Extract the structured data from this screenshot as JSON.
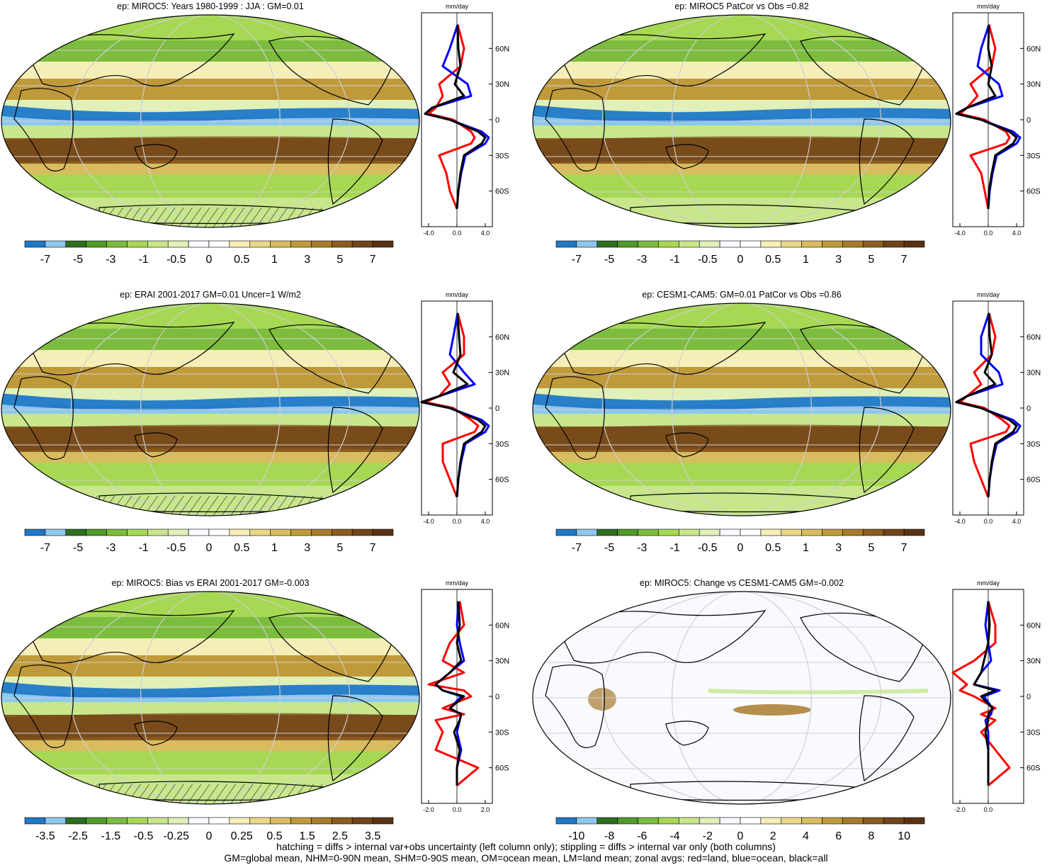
{
  "colors": {
    "palette_left": [
      "#1f78c8",
      "#8cc8f0",
      "#2e6e1e",
      "#4e9a2a",
      "#7cbc3e",
      "#a6d854",
      "#c8e68c",
      "#e0f0b8",
      "#f8fafe",
      "#ffffff",
      "#f5eeb8",
      "#e8d888",
      "#d8bc60",
      "#c09a3a",
      "#a87a2c",
      "#8c5c20",
      "#70441a",
      "#5a3214"
    ],
    "land_outline": "#000000",
    "graticule": "#cfcfcf",
    "line_land": "#ff0000",
    "line_ocean": "#0000ff",
    "line_all": "#000000"
  },
  "panels": [
    {
      "title": "ep: MIROC5: Years 1980-1999 : JJA : GM=0.01",
      "colorbar_labels": [
        "-7",
        "-5",
        "-3",
        "-1",
        "-0.5",
        "0",
        "0.5",
        "1",
        "3",
        "5",
        "7"
      ],
      "zonal_units": "mm/day",
      "zonal_ticks": [
        "-4.0",
        "0.0",
        "4.0"
      ],
      "lat_labels": [
        "60N",
        "30N",
        "0",
        "30S",
        "60S"
      ],
      "background": "mixed",
      "hatching": true
    },
    {
      "title": "ep: MIROC5 PatCor vs Obs =0.82",
      "colorbar_labels": [
        "-7",
        "-5",
        "-3",
        "-1",
        "-0.5",
        "0",
        "0.5",
        "1",
        "3",
        "5",
        "7"
      ],
      "zonal_units": "mm/day",
      "zonal_ticks": [
        "-4.0",
        "0.0",
        "4.0"
      ],
      "lat_labels": [
        "60N",
        "30N",
        "0",
        "30S",
        "60S"
      ],
      "background": "mixed",
      "hatching": false
    },
    {
      "title": "ep: ERAI 2001-2017 GM=0.01 Uncer=1 W/m2",
      "colorbar_labels": [
        "-7",
        "-5",
        "-3",
        "-1",
        "-0.5",
        "0",
        "0.5",
        "1",
        "3",
        "5",
        "7"
      ],
      "zonal_units": "mm/day",
      "zonal_ticks": [
        "-4.0",
        "0.0",
        "4.0"
      ],
      "lat_labels": [
        "60N",
        "30N",
        "0",
        "30S",
        "60S"
      ],
      "background": "mixed",
      "hatching": true
    },
    {
      "title": "ep: CESM1-CAM5: GM=0.01 PatCor vs Obs =0.86",
      "colorbar_labels": [
        "-7",
        "-5",
        "-3",
        "-1",
        "-0.5",
        "0",
        "0.5",
        "1",
        "3",
        "5",
        "7"
      ],
      "zonal_units": "mm/day",
      "zonal_ticks": [
        "-4.0",
        "0.0",
        "4.0"
      ],
      "lat_labels": [
        "60N",
        "30N",
        "0",
        "30S",
        "60S"
      ],
      "background": "mixed",
      "hatching": false
    },
    {
      "title": "ep: MIROC5: Bias vs ERAI 2001-2017 GM=-0.003",
      "colorbar_labels": [
        "-3.5",
        "-2.5",
        "-1.5",
        "-0.5",
        "-0.25",
        "0",
        "0.25",
        "0.5",
        "1.5",
        "2.5",
        "3.5"
      ],
      "zonal_units": "mm/day",
      "zonal_ticks": [
        "-2.0",
        "0.0",
        "2.0"
      ],
      "lat_labels": [
        "60N",
        "30N",
        "0",
        "30S",
        "60S"
      ],
      "background": "mixed",
      "hatching": true
    },
    {
      "title": "ep: MIROC5: Change vs CESM1-CAM5 GM=-0.002",
      "colorbar_labels": [
        "-10",
        "-8",
        "-6",
        "-4",
        "-2",
        "0",
        "2",
        "4",
        "6",
        "8",
        "10"
      ],
      "zonal_units": "mm/day",
      "zonal_ticks": [
        "-2.0",
        "0.0"
      ],
      "lat_labels": [
        "60N",
        "30N",
        "0",
        "30S",
        "60S"
      ],
      "background": "pale",
      "hatching": false
    }
  ],
  "footnote": {
    "line1": "hatching = diffs > internal var+obs uncertainty (left column only); stippling = diffs > internal var only (both columns)",
    "line2": "GM=global mean, NHM=0-90N mean, SHM=0-90S mean, OM=ocean mean, LM=land mean; zonal avgs: red=land, blue=ocean, black=all"
  },
  "chart_data": [
    {
      "type": "heatmap",
      "title": "ep: MIROC5: Years 1980-1999 : JJA : GM=0.01",
      "zonal_lat": [
        80,
        60,
        45,
        30,
        20,
        10,
        5,
        0,
        -10,
        -15,
        -20,
        -30,
        -45,
        -60,
        -75
      ],
      "zonal_all": [
        0.1,
        0.2,
        0.5,
        -0.3,
        1.0,
        -3.5,
        -4.5,
        -1.0,
        3.0,
        4.0,
        3.5,
        1.0,
        0.5,
        0.2,
        0.0
      ],
      "zonal_land": [
        0.1,
        1.0,
        0.5,
        -2.5,
        -2.0,
        -3.0,
        -4.0,
        -0.5,
        2.0,
        2.5,
        2.0,
        -2.5,
        -1.5,
        -1.0,
        0.0
      ],
      "zonal_ocean": [
        0.1,
        -1.0,
        -2.0,
        1.5,
        2.0,
        -3.5,
        -4.5,
        -1.0,
        3.5,
        4.5,
        4.0,
        1.2,
        0.6,
        0.2,
        0.0
      ]
    },
    {
      "type": "heatmap",
      "title": "ep: MIROC5 PatCor vs Obs =0.82",
      "zonal_lat": [
        80,
        60,
        45,
        30,
        20,
        10,
        5,
        0,
        -10,
        -15,
        -20,
        -30,
        -45,
        -60,
        -75
      ],
      "zonal_all": [
        0.1,
        0.0,
        0.5,
        0.0,
        1.0,
        -3.0,
        -4.5,
        -1.0,
        3.0,
        4.0,
        3.5,
        1.0,
        0.5,
        0.1,
        0.0
      ],
      "zonal_land": [
        0.1,
        1.0,
        0.5,
        -2.5,
        -1.5,
        -3.0,
        -4.0,
        -0.5,
        2.5,
        3.0,
        2.5,
        -2.5,
        -1.0,
        -0.5,
        0.0
      ],
      "zonal_ocean": [
        0.1,
        -1.0,
        -1.5,
        1.5,
        2.0,
        -3.0,
        -4.5,
        -1.0,
        3.5,
        4.5,
        4.0,
        1.2,
        0.6,
        0.2,
        0.0
      ]
    },
    {
      "type": "heatmap",
      "title": "ep: ERAI 2001-2017 GM=0.01 Uncer=1 W/m2",
      "zonal_lat": [
        80,
        60,
        45,
        30,
        20,
        10,
        5,
        0,
        -10,
        -15,
        -20,
        -30,
        -45,
        -60,
        -75
      ],
      "zonal_all": [
        0.1,
        0.3,
        0.5,
        -0.5,
        1.5,
        -2.5,
        -5.0,
        -1.0,
        3.0,
        4.0,
        3.5,
        1.0,
        0.5,
        0.2,
        0.0
      ],
      "zonal_land": [
        0.1,
        1.0,
        1.0,
        -2.0,
        -1.0,
        -2.5,
        -4.5,
        -0.5,
        2.0,
        3.0,
        2.5,
        -2.0,
        -2.0,
        -1.0,
        0.0
      ],
      "zonal_ocean": [
        0.1,
        -0.5,
        -1.0,
        1.0,
        2.5,
        -2.5,
        -5.0,
        -1.0,
        3.5,
        4.5,
        4.0,
        1.2,
        0.6,
        0.2,
        0.0
      ]
    },
    {
      "type": "heatmap",
      "title": "ep: CESM1-CAM5: GM=0.01 PatCor vs Obs =0.86",
      "zonal_lat": [
        80,
        60,
        45,
        30,
        20,
        10,
        5,
        0,
        -10,
        -15,
        -20,
        -30,
        -45,
        -60,
        -75
      ],
      "zonal_all": [
        0.1,
        0.2,
        0.5,
        -0.5,
        1.0,
        -3.0,
        -4.5,
        -1.0,
        3.0,
        4.0,
        3.5,
        1.0,
        0.5,
        0.2,
        0.0
      ],
      "zonal_land": [
        0.1,
        1.0,
        0.5,
        -2.0,
        -1.0,
        -3.0,
        -4.0,
        -0.5,
        2.0,
        3.0,
        2.5,
        -2.5,
        -2.0,
        -1.0,
        0.0
      ],
      "zonal_ocean": [
        0.1,
        -1.0,
        -1.0,
        1.5,
        2.0,
        -3.0,
        -4.5,
        -1.0,
        3.5,
        4.5,
        4.0,
        1.2,
        0.6,
        0.2,
        0.0
      ]
    },
    {
      "type": "heatmap",
      "title": "ep: MIROC5: Bias vs ERAI 2001-2017 GM=-0.003",
      "zonal_lat": [
        80,
        60,
        45,
        30,
        20,
        10,
        5,
        0,
        -10,
        -15,
        -20,
        -30,
        -45,
        -60,
        -75
      ],
      "zonal_all": [
        0.1,
        0.2,
        0.0,
        0.3,
        -0.5,
        -1.5,
        -1.0,
        0.5,
        -0.5,
        0.3,
        0.2,
        -0.2,
        0.2,
        0.0,
        0.0
      ],
      "zonal_land": [
        0.2,
        0.5,
        -0.5,
        -1.0,
        0.5,
        -2.0,
        0.5,
        1.0,
        -1.0,
        0.5,
        -1.5,
        -1.0,
        -1.5,
        1.5,
        0.0
      ],
      "zonal_ocean": [
        0.1,
        0.0,
        0.2,
        0.5,
        -0.5,
        -1.5,
        -1.0,
        0.3,
        -0.5,
        0.3,
        0.2,
        0.0,
        0.3,
        0.0,
        0.0
      ]
    },
    {
      "type": "heatmap",
      "title": "ep: MIROC5: Change vs CESM1-CAM5 GM=-0.002",
      "zonal_lat": [
        80,
        60,
        45,
        30,
        20,
        10,
        5,
        0,
        -10,
        -15,
        -20,
        -30,
        -45,
        -60,
        -75
      ],
      "zonal_all": [
        0.0,
        0.1,
        0.0,
        -0.3,
        -0.5,
        -1.0,
        0.5,
        -0.5,
        0.3,
        0.0,
        0.0,
        -0.2,
        0.0,
        0.0,
        0.0
      ],
      "zonal_land": [
        0.0,
        0.5,
        0.5,
        -1.0,
        -2.5,
        -1.5,
        -2.0,
        -1.0,
        0.5,
        -0.5,
        0.5,
        -0.5,
        0.5,
        1.5,
        0.0
      ],
      "zonal_ocean": [
        0.0,
        -0.2,
        0.0,
        0.2,
        -0.5,
        -1.0,
        0.8,
        -0.3,
        0.3,
        0.2,
        -0.2,
        0.0,
        0.0,
        0.0,
        0.0
      ]
    }
  ]
}
